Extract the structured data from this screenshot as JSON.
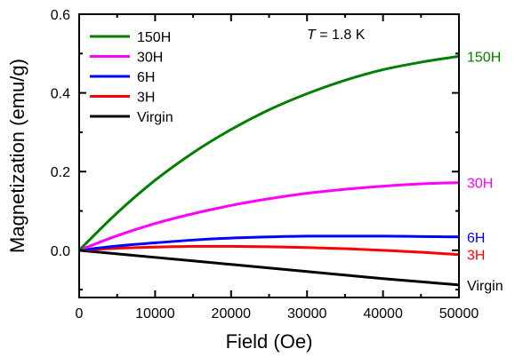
{
  "chart_data": {
    "type": "line",
    "xlabel": "Field (Oe)",
    "ylabel": "Magnetization (emu/g)",
    "xlim": [
      0,
      50000
    ],
    "ylim": [
      -0.12,
      0.6
    ],
    "x_ticks": [
      0,
      10000,
      20000,
      30000,
      40000,
      50000
    ],
    "x_tick_labels": [
      "0",
      "10000",
      "20000",
      "30000",
      "40000",
      "50000"
    ],
    "y_ticks": [
      0.0,
      0.2,
      0.4,
      0.6
    ],
    "y_tick_labels": [
      "0.0",
      "0.2",
      "0.4",
      "0.6"
    ],
    "annotation": {
      "prefix": "T",
      "suffix": " = 1.8 K"
    },
    "grid": false,
    "legend_position": "top-left",
    "series": [
      {
        "name": "150H",
        "color": "#007f00",
        "x": [
          0,
          5000,
          10000,
          15000,
          20000,
          25000,
          30000,
          35000,
          40000,
          45000,
          50000
        ],
        "y": [
          0.0,
          0.095,
          0.178,
          0.248,
          0.307,
          0.357,
          0.398,
          0.432,
          0.459,
          0.478,
          0.493
        ]
      },
      {
        "name": "30H",
        "color": "#ff00ff",
        "x": [
          0,
          5000,
          10000,
          15000,
          20000,
          25000,
          30000,
          35000,
          40000,
          45000,
          50000
        ],
        "y": [
          0.0,
          0.037,
          0.068,
          0.093,
          0.114,
          0.131,
          0.145,
          0.155,
          0.163,
          0.169,
          0.172
        ]
      },
      {
        "name": "6H",
        "color": "#0000ff",
        "x": [
          0,
          5000,
          10000,
          15000,
          20000,
          25000,
          30000,
          35000,
          40000,
          45000,
          50000
        ],
        "y": [
          0.0,
          0.011,
          0.019,
          0.026,
          0.031,
          0.034,
          0.036,
          0.036,
          0.036,
          0.035,
          0.034
        ]
      },
      {
        "name": "3H",
        "color": "#ff0000",
        "x": [
          0,
          5000,
          10000,
          15000,
          20000,
          25000,
          30000,
          35000,
          40000,
          45000,
          50000
        ],
        "y": [
          0.0,
          0.005,
          0.008,
          0.01,
          0.01,
          0.009,
          0.007,
          0.004,
          0.0,
          -0.005,
          -0.011
        ]
      },
      {
        "name": "Virgin",
        "color": "#000000",
        "x": [
          0,
          5000,
          10000,
          15000,
          20000,
          25000,
          30000,
          35000,
          40000,
          45000,
          50000
        ],
        "y": [
          0.0,
          -0.009,
          -0.018,
          -0.027,
          -0.036,
          -0.045,
          -0.054,
          -0.063,
          -0.072,
          -0.08,
          -0.088
        ]
      }
    ],
    "end_labels": [
      {
        "text": "150H",
        "color": "#007f00",
        "y": 0.493
      },
      {
        "text": "30H",
        "color": "#ff00ff",
        "y": 0.172
      },
      {
        "text": "6H",
        "color": "#0000ff",
        "y": 0.034
      },
      {
        "text": "3H",
        "color": "#ff0000",
        "y": -0.011
      },
      {
        "text": "Virgin",
        "color": "#000000",
        "y": -0.088
      }
    ]
  }
}
